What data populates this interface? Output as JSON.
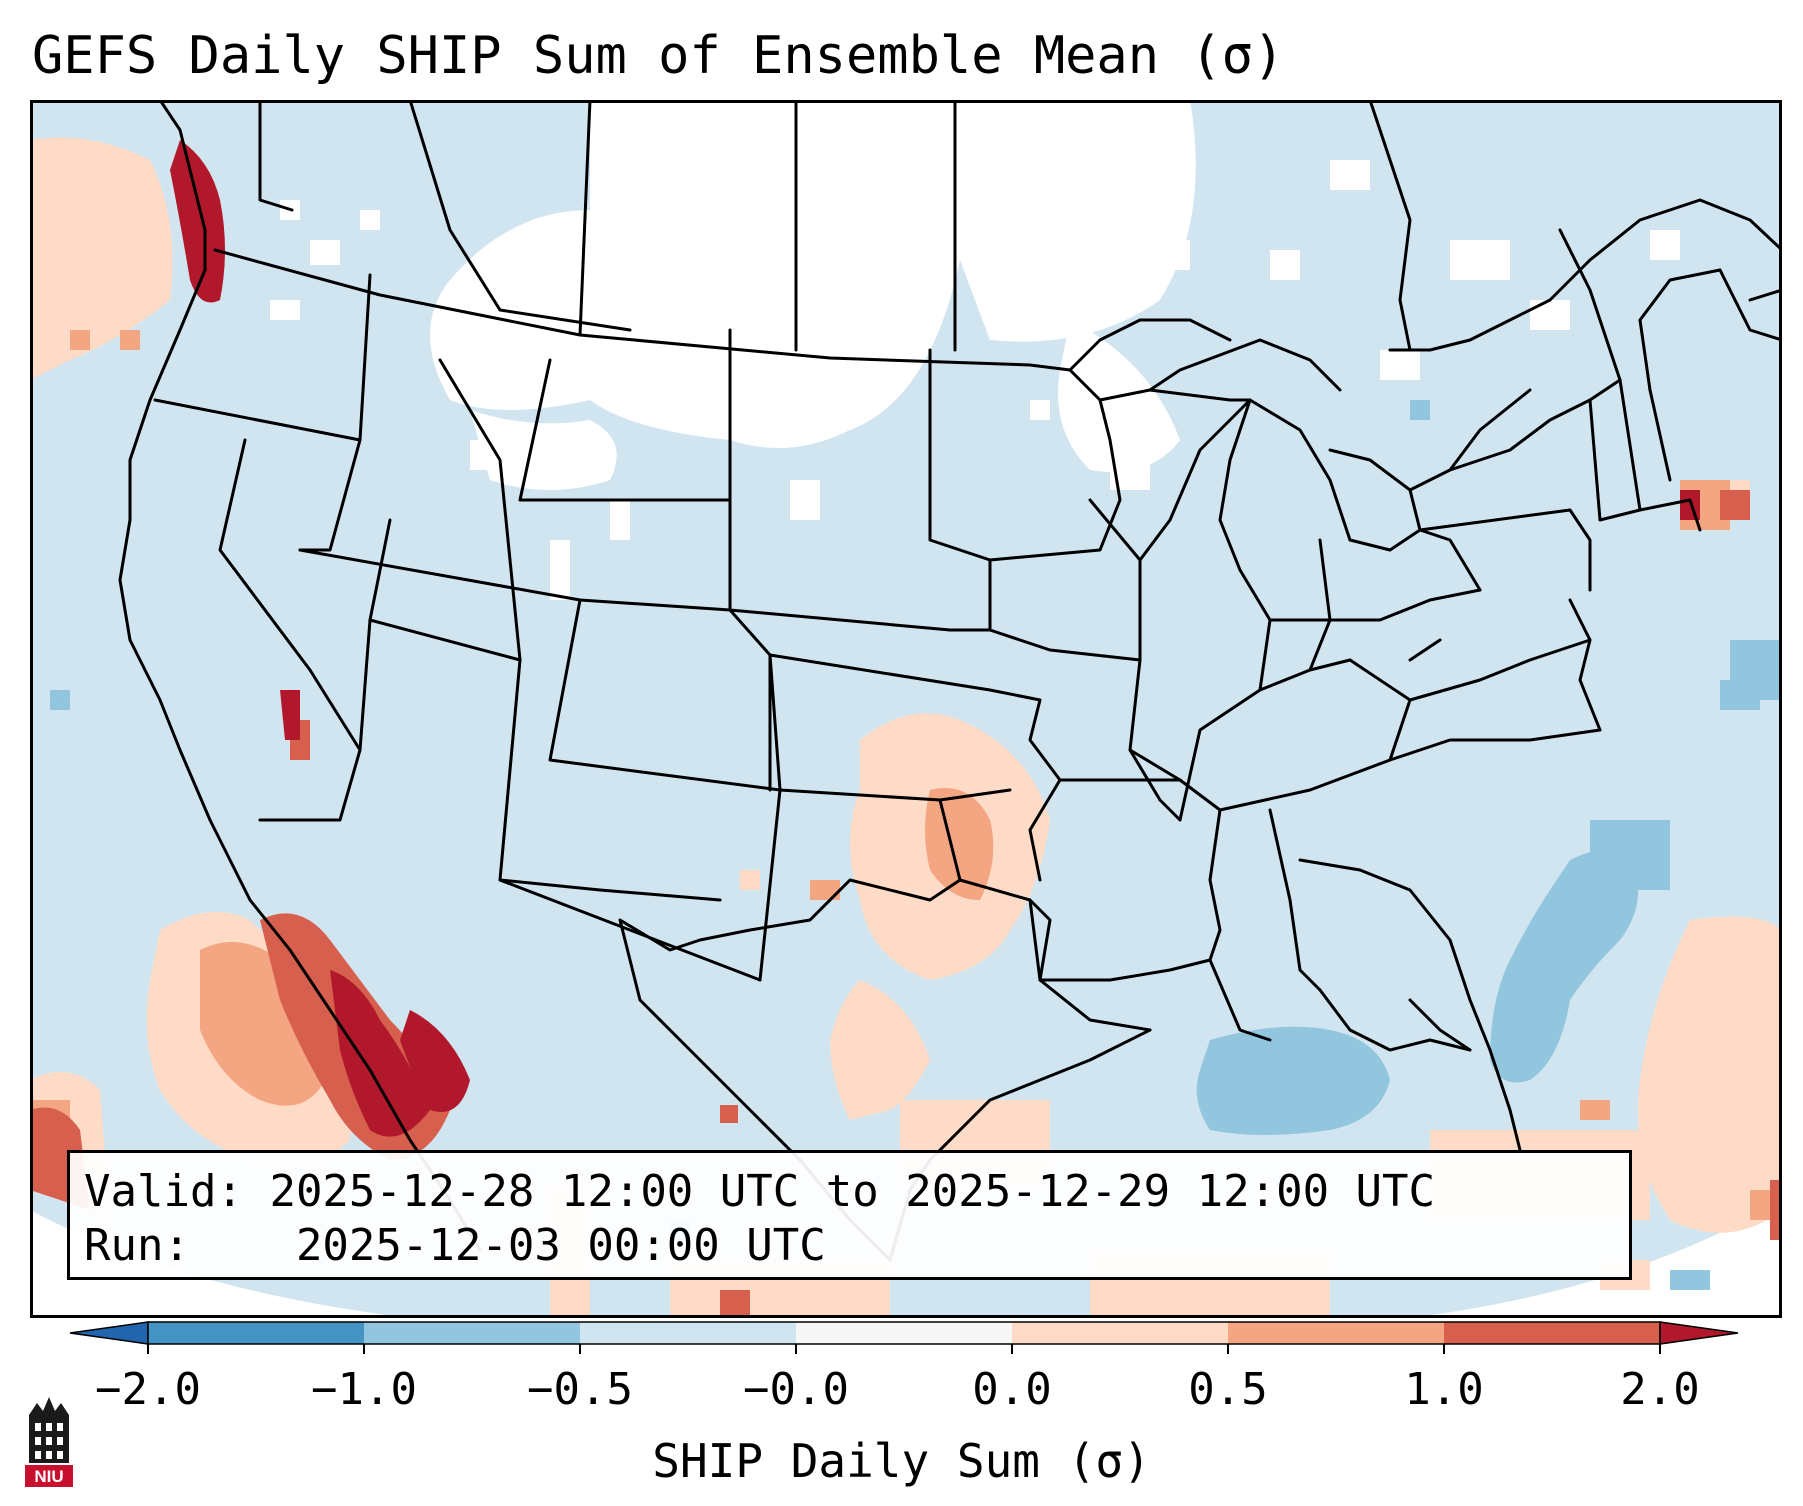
{
  "title": "GEFS Daily SHIP Sum of Ensemble Mean (σ)",
  "info": {
    "valid_label": "Valid:",
    "valid_value": "2025-12-28 12:00 UTC to 2025-12-29 12:00 UTC",
    "run_label": "Run:",
    "run_value": "2025-12-03 00:00 UTC"
  },
  "colorbar": {
    "label": "SHIP Daily Sum (σ)",
    "ticks": [
      "−2.0",
      "−1.0",
      "−0.5",
      "−0.0",
      "0.0",
      "0.5",
      "1.0",
      "2.0"
    ],
    "bin_colors": [
      "#4393c3",
      "#92c5de",
      "#d1e5f0",
      "#f7f7f7",
      "#fddbc7",
      "#f4a582",
      "#d6604d"
    ],
    "under_color": "#2166ac",
    "over_color": "#b2182b",
    "extend": "both"
  },
  "map": {
    "region": "CONUS",
    "field_colors": {
      "background": "#d1e5f0",
      "neutral": "#ffffff",
      "light_negative": "#92c5de",
      "light_positive": "#fddbc7",
      "moderate_positive": "#f4a582",
      "high_positive": "#d6604d",
      "extreme_positive": "#b2182b"
    }
  },
  "logo": {
    "name": "niu-logo",
    "text": "NIU",
    "color": "#c8102e"
  }
}
